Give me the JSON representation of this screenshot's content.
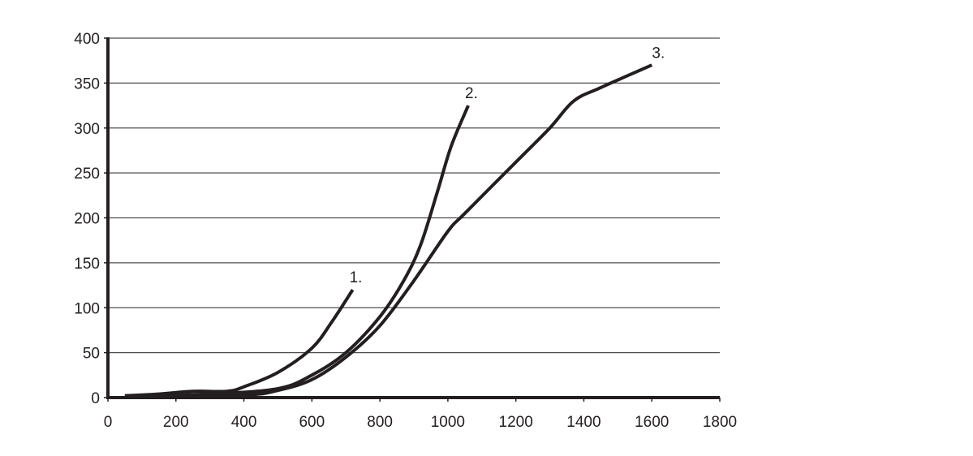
{
  "chart_data": {
    "type": "line",
    "title": "",
    "xlabel": "",
    "ylabel": "",
    "xlim": [
      0,
      1800
    ],
    "ylim": [
      0,
      400
    ],
    "x_ticks": [
      "0",
      "200",
      "400",
      "600",
      "800",
      "1000",
      "1200",
      "1400",
      "1600",
      "1800"
    ],
    "y_ticks": [
      "0",
      "50",
      "100",
      "150",
      "200",
      "250",
      "300",
      "350",
      "400"
    ],
    "grid": {
      "horizontal": true,
      "vertical": false
    },
    "legend": null,
    "series": [
      {
        "name": "1.",
        "points": [
          [
            50,
            2
          ],
          [
            150,
            4
          ],
          [
            250,
            7
          ],
          [
            350,
            7
          ],
          [
            400,
            12
          ],
          [
            500,
            28
          ],
          [
            600,
            55
          ],
          [
            660,
            85
          ],
          [
            720,
            120
          ]
        ]
      },
      {
        "name": "2.",
        "points": [
          [
            50,
            2
          ],
          [
            300,
            4
          ],
          [
            500,
            10
          ],
          [
            600,
            25
          ],
          [
            700,
            50
          ],
          [
            800,
            90
          ],
          [
            870,
            130
          ],
          [
            920,
            170
          ],
          [
            970,
            230
          ],
          [
            1010,
            280
          ],
          [
            1060,
            325
          ]
        ]
      },
      {
        "name": "3.",
        "points": [
          [
            50,
            1
          ],
          [
            400,
            3
          ],
          [
            500,
            8
          ],
          [
            600,
            20
          ],
          [
            700,
            45
          ],
          [
            800,
            80
          ],
          [
            900,
            130
          ],
          [
            1000,
            185
          ],
          [
            1050,
            205
          ],
          [
            1200,
            262
          ],
          [
            1300,
            300
          ],
          [
            1370,
            330
          ],
          [
            1450,
            345
          ],
          [
            1600,
            370
          ]
        ]
      }
    ],
    "annotations": [
      {
        "text": "1.",
        "x": 720,
        "y": 128
      },
      {
        "text": "2.",
        "x": 1060,
        "y": 333
      },
      {
        "text": "3.",
        "x": 1610,
        "y": 378
      }
    ]
  },
  "colors": {
    "line": "#231f20",
    "grid": "#4d4d4d",
    "axis": "#231f20"
  }
}
